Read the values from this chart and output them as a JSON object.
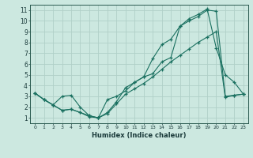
{
  "xlabel": "Humidex (Indice chaleur)",
  "xlim": [
    -0.5,
    23.5
  ],
  "ylim": [
    0.5,
    11.5
  ],
  "xticks": [
    0,
    1,
    2,
    3,
    4,
    5,
    6,
    7,
    8,
    9,
    10,
    11,
    12,
    13,
    14,
    15,
    16,
    17,
    18,
    19,
    20,
    21,
    22,
    23
  ],
  "yticks": [
    1,
    2,
    3,
    4,
    5,
    6,
    7,
    8,
    9,
    10,
    11
  ],
  "bg_color": "#cce8e0",
  "grid_color": "#b0d0c8",
  "line_color": "#1a7060",
  "line1_x": [
    0,
    1,
    2,
    3,
    4,
    5,
    6,
    7,
    8,
    9,
    10,
    11,
    12,
    13,
    14,
    15,
    16,
    17,
    18,
    19,
    20,
    21,
    22,
    23
  ],
  "line1_y": [
    3.3,
    2.7,
    2.2,
    3.0,
    3.1,
    2.0,
    1.2,
    1.0,
    2.7,
    3.0,
    3.5,
    4.3,
    4.8,
    5.1,
    6.2,
    6.6,
    9.5,
    10.0,
    10.4,
    11.0,
    10.9,
    3.0,
    3.1,
    3.2
  ],
  "line2_x": [
    0,
    1,
    2,
    3,
    4,
    5,
    6,
    7,
    8,
    9,
    10,
    11,
    12,
    13,
    14,
    15,
    16,
    17,
    18,
    19,
    20,
    21,
    22,
    23
  ],
  "line2_y": [
    3.3,
    2.7,
    2.2,
    1.7,
    1.8,
    1.5,
    1.2,
    1.0,
    1.5,
    2.5,
    3.8,
    4.3,
    4.8,
    6.5,
    7.8,
    8.3,
    9.5,
    10.2,
    10.6,
    11.1,
    7.5,
    5.0,
    4.3,
    3.2
  ],
  "line3_x": [
    0,
    1,
    2,
    3,
    4,
    5,
    6,
    7,
    8,
    9,
    10,
    11,
    12,
    13,
    14,
    15,
    16,
    17,
    18,
    19,
    20,
    21,
    22,
    23
  ],
  "line3_y": [
    3.3,
    2.7,
    2.2,
    1.7,
    1.8,
    1.5,
    1.1,
    1.0,
    1.4,
    2.3,
    3.2,
    3.7,
    4.2,
    4.8,
    5.5,
    6.2,
    6.8,
    7.4,
    8.0,
    8.5,
    9.0,
    2.9,
    3.1,
    3.2
  ]
}
